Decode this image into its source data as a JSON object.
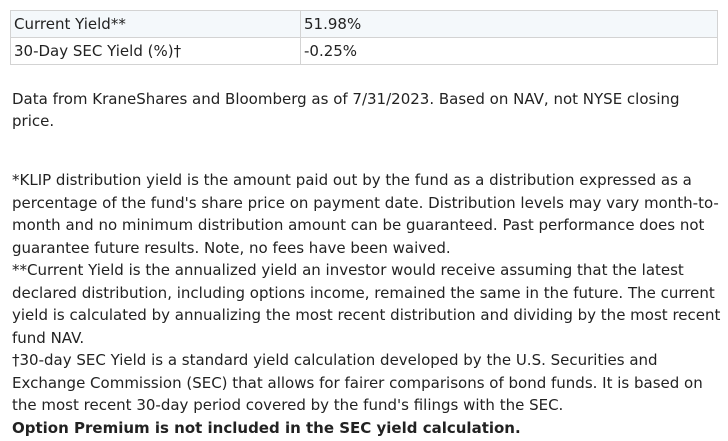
{
  "yield_table": {
    "rows": [
      {
        "label": "Current Yield**",
        "value": "51.98%"
      },
      {
        "label": "30-Day SEC Yield (%)†",
        "value": "-0.25%"
      }
    ]
  },
  "source_note": "Data from KraneShares and Bloomberg as of 7/31/2023. Based on NAV, not NYSE closing price.",
  "footnotes": {
    "distribution_yield": "*KLIP distribution yield is the amount paid out by the fund as a distribution expressed as a percentage of the fund's share price on payment date. Distribution levels may vary month-to-month and no minimum distribution amount can be guaranteed. Past performance does not guarantee future results. Note, no fees have been waived.",
    "current_yield": "**Current Yield is the annualized yield an investor would receive assuming that the latest declared distribution, including options income, remained the same in the future. The current yield is calculated by annualizing the most recent distribution and dividing by the most recent fund NAV.",
    "sec_yield": "†30-day SEC Yield is a standard yield calculation developed by the U.S. Securities and Exchange Commission (SEC) that allows for fairer comparisons of bond funds. It is based on the most recent 30-day period covered by the fund's filings with the SEC.",
    "option_premium": "Option Premium is not included in the SEC yield calculation."
  }
}
